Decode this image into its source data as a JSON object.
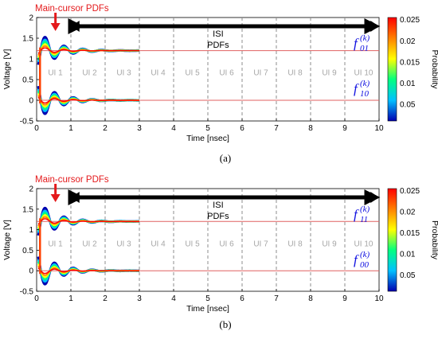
{
  "chart_data": [
    {
      "type": "line",
      "caption": "(a)",
      "xlabel": "Time [nsec]",
      "ylabel": "Voltage [V]",
      "xlim": [
        0,
        10
      ],
      "ylim": [
        -0.5,
        2
      ],
      "xticks": [
        "0",
        "1",
        "2",
        "3",
        "4",
        "5",
        "6",
        "7",
        "8",
        "9",
        "10"
      ],
      "yticks": [
        "-0.5",
        "0",
        "0.5",
        "1",
        "1.5",
        "2"
      ],
      "ui_labels": [
        "UI 1",
        "UI 2",
        "UI 3",
        "UI 4",
        "UI 5",
        "UI 6",
        "UI 7",
        "UI 8",
        "UI 9",
        "UI 10"
      ],
      "ui_boundaries": [
        1,
        2,
        3,
        4,
        5,
        6,
        7,
        8,
        9,
        10
      ],
      "annotation_main": "Main-cursor PDFs",
      "annotation_isi_line1": "ISI",
      "annotation_isi_line2": "PDFs",
      "series": [
        {
          "name": "f01(k)",
          "label_base": "f",
          "label_sub": "01",
          "label_sup": "(k)",
          "settle": 1.2
        },
        {
          "name": "f10(k)",
          "label_base": "f",
          "label_sub": "10",
          "label_sup": "(k)",
          "settle": 0.0
        }
      ],
      "colorbar": {
        "label": "Probability",
        "ticks": [
          "0.025",
          "0.02",
          "0.015",
          "0.01",
          "0.05"
        ],
        "colors": [
          "#ff0000",
          "#ff8000",
          "#ffff00",
          "#00ff80",
          "#00c0ff",
          "#0000b0"
        ]
      }
    },
    {
      "type": "line",
      "caption": "(b)",
      "xlabel": "Time [nsec]",
      "ylabel": "Voltage [V]",
      "xlim": [
        0,
        10
      ],
      "ylim": [
        -0.5,
        2
      ],
      "xticks": [
        "0",
        "1",
        "2",
        "3",
        "4",
        "5",
        "6",
        "7",
        "8",
        "9",
        "10"
      ],
      "yticks": [
        "-0.5",
        "0",
        "0.5",
        "1",
        "1.5",
        "2"
      ],
      "ui_labels": [
        "UI 1",
        "UI 2",
        "UI 3",
        "UI 4",
        "UI 5",
        "UI 6",
        "UI 7",
        "UI 8",
        "UI 9",
        "UI 10"
      ],
      "ui_boundaries": [
        1,
        2,
        3,
        4,
        5,
        6,
        7,
        8,
        9,
        10
      ],
      "annotation_main": "Main-cursor PDFs",
      "annotation_isi_line1": "ISI",
      "annotation_isi_line2": "PDFs",
      "series": [
        {
          "name": "f11(k)",
          "label_base": "f",
          "label_sub": "11",
          "label_sup": "(k)",
          "settle": 1.2
        },
        {
          "name": "f00(k)",
          "label_base": "f",
          "label_sub": "00",
          "label_sup": "(k)",
          "settle": 0.0
        }
      ],
      "colorbar": {
        "label": "Probability",
        "ticks": [
          "0.025",
          "0.02",
          "0.015",
          "0.01",
          "0.05"
        ],
        "colors": [
          "#ff0000",
          "#ff8000",
          "#ffff00",
          "#00ff80",
          "#00c0ff",
          "#0000b0"
        ]
      }
    }
  ]
}
